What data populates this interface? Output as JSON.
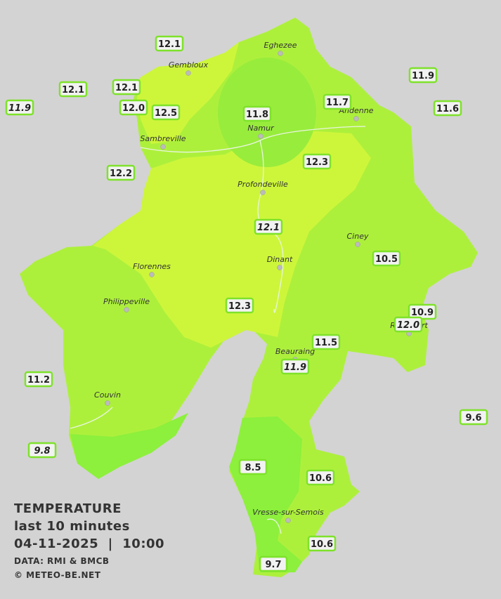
{
  "cities": [
    "Eghezee",
    "Gembloux",
    "Andenne",
    "Namur",
    "Sambreville",
    "Profondeville",
    "Ciney",
    "Dinant",
    "Florennes",
    "Philippeville",
    "Rochefort",
    "Beauraing",
    "Couvin",
    "Vresse-sur-Semois"
  ],
  "stations": [
    {
      "label": "12.1",
      "italic": false
    },
    {
      "label": "12.1",
      "italic": false
    },
    {
      "label": "12.1",
      "italic": false
    },
    {
      "label": "11.9",
      "italic": true
    },
    {
      "label": "12.0",
      "italic": false
    },
    {
      "label": "12.5",
      "italic": false
    },
    {
      "label": "11.8",
      "italic": false
    },
    {
      "label": "11.7",
      "italic": false
    },
    {
      "label": "11.9",
      "italic": false
    },
    {
      "label": "11.6",
      "italic": false
    },
    {
      "label": "12.2",
      "italic": false
    },
    {
      "label": "12.3",
      "italic": false
    },
    {
      "label": "12.1",
      "italic": true
    },
    {
      "label": "10.5",
      "italic": false
    },
    {
      "label": "12.3",
      "italic": false
    },
    {
      "label": "10.9",
      "italic": false
    },
    {
      "label": "12.0",
      "italic": true
    },
    {
      "label": "11.5",
      "italic": false
    },
    {
      "label": "11.9",
      "italic": true
    },
    {
      "label": "11.2",
      "italic": false
    },
    {
      "label": "9.6",
      "italic": false
    },
    {
      "label": "9.8",
      "italic": true
    },
    {
      "label": "8.5",
      "italic": false
    },
    {
      "label": "10.6",
      "italic": false
    },
    {
      "label": "10.6",
      "italic": false
    },
    {
      "label": "9.7",
      "italic": false
    }
  ],
  "legend": {
    "title": "TEMPERATURE",
    "subtitle": "last 10 minutes",
    "datetime": "04-11-2025  |  10:00",
    "source": "DATA: RMI & BMCB",
    "copyright": "© METEO-BE.NET"
  }
}
